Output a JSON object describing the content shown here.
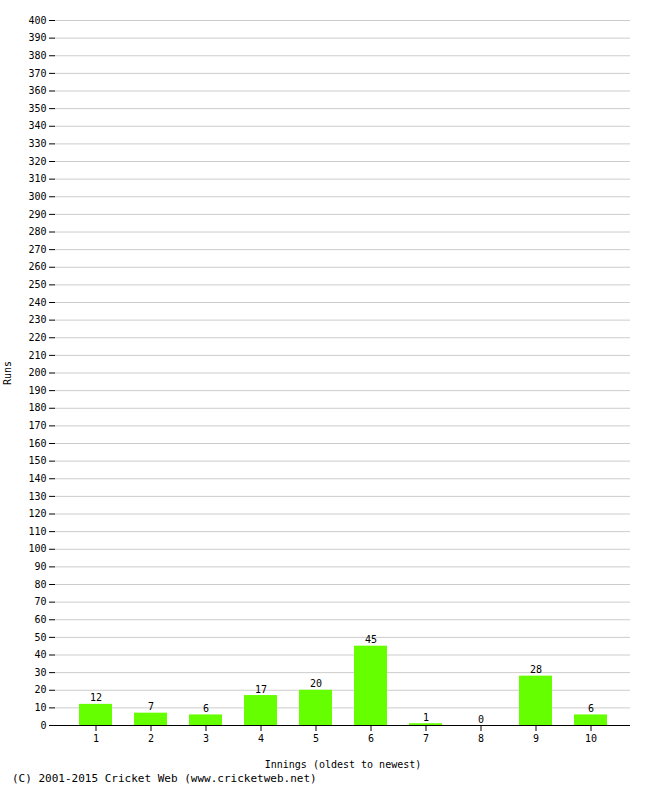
{
  "chart_data": {
    "type": "bar",
    "categories": [
      1,
      2,
      3,
      4,
      5,
      6,
      7,
      8,
      9,
      10
    ],
    "values": [
      12,
      7,
      6,
      17,
      20,
      45,
      1,
      0,
      28,
      6
    ],
    "color": "#66ff00",
    "xlabel": "Innings (oldest to newest)",
    "ylabel": "Runs",
    "ylim": [
      0,
      400
    ],
    "yticks": [
      0,
      10,
      20,
      30,
      40,
      50,
      60,
      70,
      80,
      90,
      100,
      110,
      120,
      130,
      140,
      150,
      160,
      170,
      180,
      190,
      200,
      210,
      220,
      230,
      240,
      250,
      260,
      270,
      280,
      290,
      300,
      310,
      320,
      330,
      340,
      350,
      360,
      370,
      380,
      390,
      400
    ],
    "grid": true,
    "data_labels": true,
    "footer": "(C) 2001-2015 Cricket Web (www.cricketweb.net)"
  }
}
